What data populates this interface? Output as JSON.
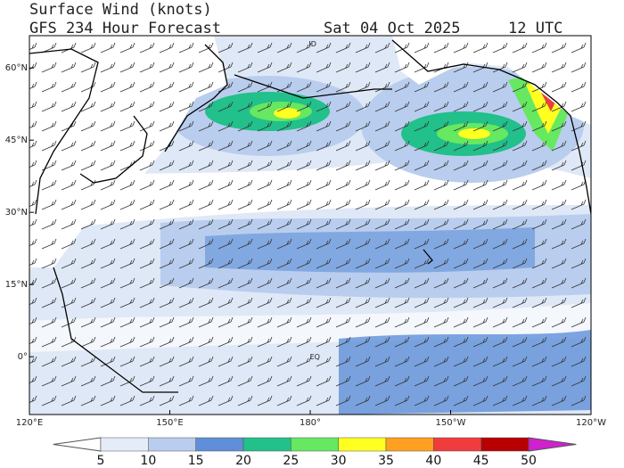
{
  "header": {
    "title": "Surface Wind (knots)",
    "subtitle": "GFS 234 Hour Forecast",
    "date": "Sat 04 Oct 2025",
    "time": "12 UTC"
  },
  "map": {
    "lon_range": [
      120,
      240
    ],
    "lat_range": [
      -12,
      66.7
    ],
    "lat_ticks": [
      {
        "value": 60,
        "label": "60°N"
      },
      {
        "value": 45,
        "label": "45°N"
      },
      {
        "value": 30,
        "label": "30°N"
      },
      {
        "value": 15,
        "label": "15°N"
      },
      {
        "value": 0,
        "label": "0°"
      }
    ],
    "lon_ticks": [
      {
        "value": 120,
        "label": "120°E"
      },
      {
        "value": 150,
        "label": "150°E"
      },
      {
        "value": 180,
        "label": "180°"
      },
      {
        "value": 210,
        "label": "150°W"
      },
      {
        "value": 240,
        "label": "120°W"
      }
    ],
    "annotations": [
      {
        "label": "EQ",
        "lon": 181,
        "lat": 0
      },
      {
        "label": "ID",
        "lon": 180.5,
        "lat": 65
      }
    ]
  },
  "colorbar": {
    "ticks": [
      5,
      10,
      15,
      20,
      25,
      30,
      35,
      40,
      45,
      50
    ],
    "colors": [
      "#ffffff",
      "#e4ecf8",
      "#b9cdee",
      "#5e8fd8",
      "#22c08a",
      "#66e860",
      "#ffff20",
      "#ffa020",
      "#f03c3c",
      "#b80000",
      "#d020d0"
    ]
  }
}
